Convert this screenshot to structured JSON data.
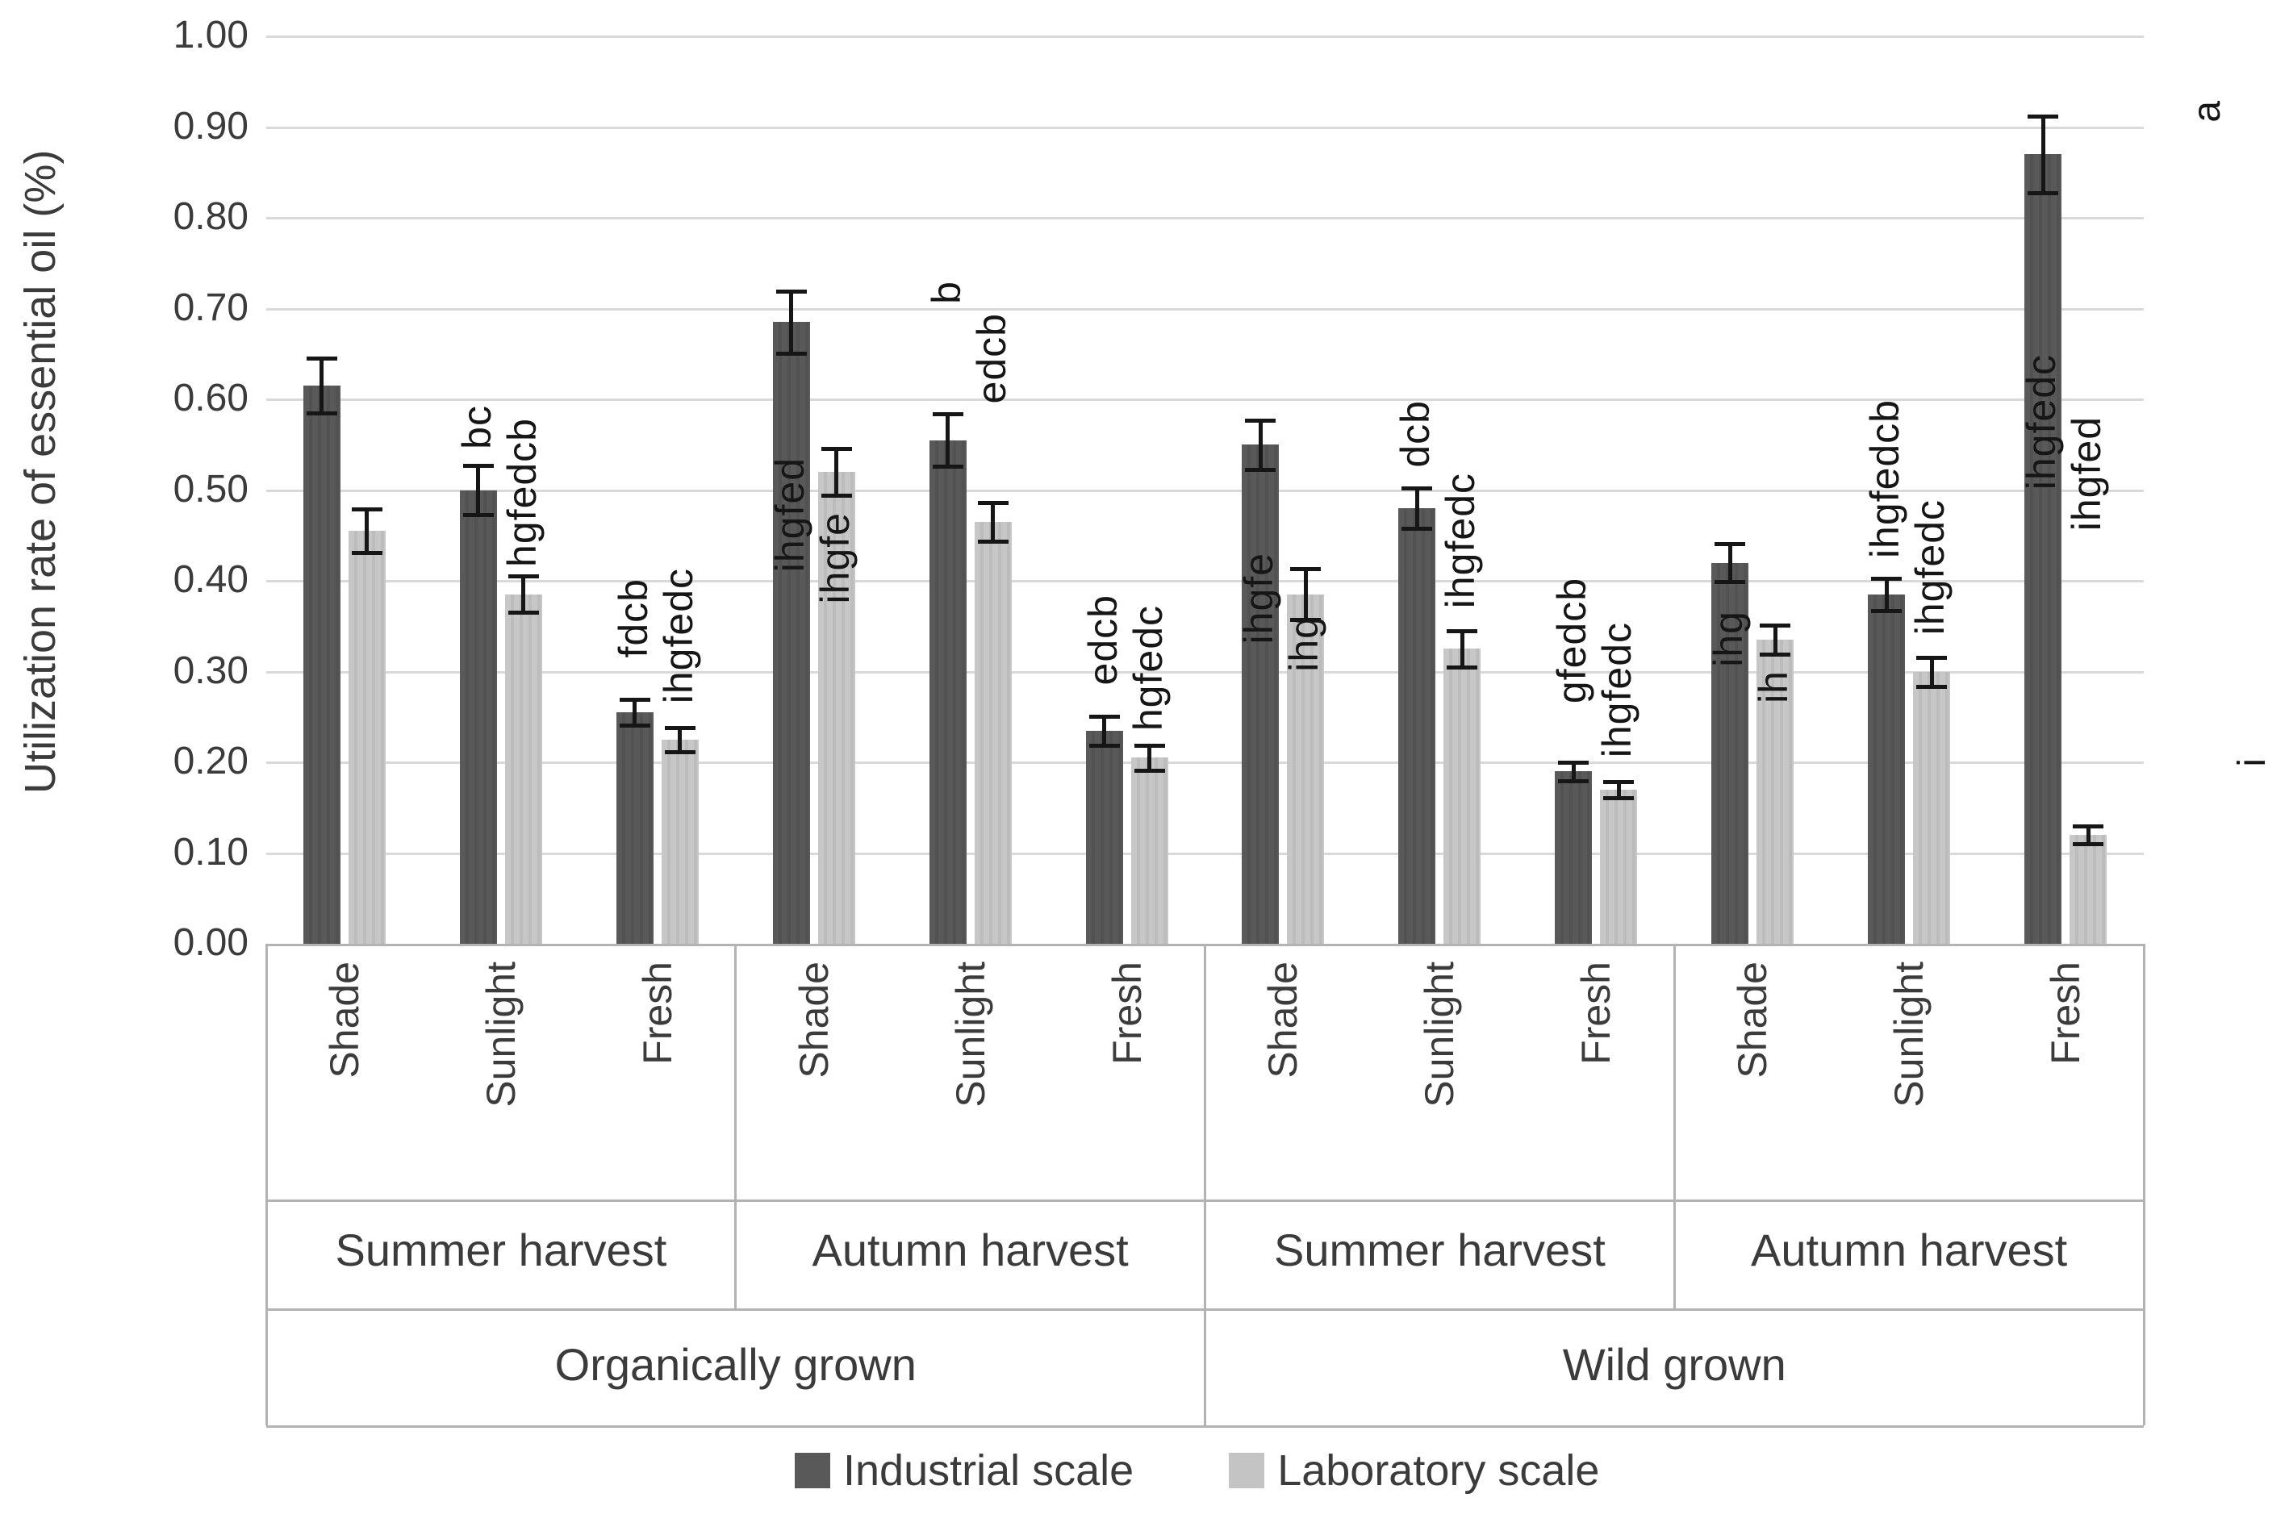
{
  "figure": {
    "y_axis_title": "Utilization rate of essential oil (%)"
  },
  "colors": {
    "industrial": "#595959",
    "laboratory": "#c4c4c4",
    "gridline": "#d9d9d9",
    "frame": "#b3b3b3",
    "error_bar": "#161616",
    "text": "#3b3b3b"
  },
  "chart_data": {
    "type": "bar",
    "ylabel": "Utilization rate of essential oil (%)",
    "ylim": [
      0,
      1.0
    ],
    "ytick_step": 0.1,
    "ytick_labels": [
      "0.00",
      "0.10",
      "0.20",
      "0.30",
      "0.40",
      "0.50",
      "0.60",
      "0.70",
      "0.80",
      "0.90",
      "1.00"
    ],
    "grid": true,
    "legend_position": "bottom",
    "series_names": [
      "Industrial scale",
      "Laboratory scale"
    ],
    "groups": [
      {
        "growth_label": "Organically grown",
        "harvest_label": "Summer harvest",
        "conditions": [
          {
            "condition": "Shade",
            "bars": [
              {
                "series": "Industrial scale",
                "value": 0.615,
                "error": 0.03,
                "letters": "",
                "letters_bottom": null
              },
              {
                "series": "Laboratory scale",
                "value": 0.455,
                "error": 0.024,
                "letters": "",
                "letters_bottom": null
              }
            ]
          },
          {
            "condition": "Sunlight",
            "bars": [
              {
                "series": "Industrial scale",
                "value": 0.5,
                "error": 0.027,
                "letters": "bc",
                "letters_bottom": 0.545
              },
              {
                "series": "Laboratory scale",
                "value": 0.385,
                "error": 0.02,
                "letters": "hgfedcb",
                "letters_bottom": 0.415
              }
            ]
          },
          {
            "condition": "Fresh",
            "bars": [
              {
                "series": "Industrial scale",
                "value": 0.255,
                "error": 0.014,
                "letters": "fdcb",
                "letters_bottom": 0.315
              },
              {
                "series": "Laboratory scale",
                "value": 0.225,
                "error": 0.013,
                "letters": "ihgfedc",
                "letters_bottom": 0.265
              }
            ]
          }
        ]
      },
      {
        "growth_label": "Organically grown",
        "harvest_label": "Autumn harvest",
        "conditions": [
          {
            "condition": "Shade",
            "bars": [
              {
                "series": "Industrial scale",
                "value": 0.685,
                "error": 0.034,
                "letters": "ihgfed",
                "letters_bottom": 0.41
              },
              {
                "series": "Laboratory scale",
                "value": 0.52,
                "error": 0.026,
                "letters": "ihgfe",
                "letters_bottom": 0.375
              }
            ]
          },
          {
            "condition": "Sunlight",
            "bars": [
              {
                "series": "Industrial scale",
                "value": 0.555,
                "error": 0.029,
                "letters": "b",
                "letters_bottom": 0.705
              },
              {
                "series": "Laboratory scale",
                "value": 0.465,
                "error": 0.021,
                "letters": "edcb",
                "letters_bottom": 0.595
              }
            ]
          },
          {
            "condition": "Fresh",
            "bars": [
              {
                "series": "Industrial scale",
                "value": 0.235,
                "error": 0.016,
                "letters": "edcb",
                "letters_bottom": 0.285
              },
              {
                "series": "Laboratory scale",
                "value": 0.205,
                "error": 0.014,
                "letters": "hgfedc",
                "letters_bottom": 0.235
              }
            ]
          }
        ]
      },
      {
        "growth_label": "Wild grown",
        "harvest_label": "Summer harvest",
        "conditions": [
          {
            "condition": "Shade",
            "bars": [
              {
                "series": "Industrial scale",
                "value": 0.55,
                "error": 0.027,
                "letters": "ihgfe",
                "letters_bottom": 0.33
              },
              {
                "series": "Laboratory scale",
                "value": 0.385,
                "error": 0.028,
                "letters": "ihg",
                "letters_bottom": 0.3
              }
            ]
          },
          {
            "condition": "Sunlight",
            "bars": [
              {
                "series": "Industrial scale",
                "value": 0.48,
                "error": 0.022,
                "letters": "dcb",
                "letters_bottom": 0.525
              },
              {
                "series": "Laboratory scale",
                "value": 0.325,
                "error": 0.02,
                "letters": "ihgfedc",
                "letters_bottom": 0.37
              }
            ]
          },
          {
            "condition": "Fresh",
            "bars": [
              {
                "series": "Industrial scale",
                "value": 0.19,
                "error": 0.01,
                "letters": "gfedcb",
                "letters_bottom": 0.265
              },
              {
                "series": "Laboratory scale",
                "value": 0.17,
                "error": 0.009,
                "letters": "ihgfedc",
                "letters_bottom": 0.205
              }
            ]
          }
        ]
      },
      {
        "growth_label": "Wild grown",
        "harvest_label": "Autumn harvest",
        "conditions": [
          {
            "condition": "Shade",
            "bars": [
              {
                "series": "Industrial scale",
                "value": 0.42,
                "error": 0.021,
                "letters": "ihg",
                "letters_bottom": 0.305
              },
              {
                "series": "Laboratory scale",
                "value": 0.335,
                "error": 0.016,
                "letters": "ih",
                "letters_bottom": 0.265
              }
            ]
          },
          {
            "condition": "Sunlight",
            "bars": [
              {
                "series": "Industrial scale",
                "value": 0.385,
                "error": 0.018,
                "letters": "ihgfedcb",
                "letters_bottom": 0.425
              },
              {
                "series": "Laboratory scale",
                "value": 0.3,
                "error": 0.016,
                "letters": "ihgfedc",
                "letters_bottom": 0.34
              }
            ]
          },
          {
            "condition": "Fresh",
            "bars": [
              {
                "series": "Industrial scale",
                "value": 0.87,
                "error": 0.042,
                "letters": "ihgfedc",
                "letters_bottom": 0.5
              },
              {
                "series": "Laboratory scale",
                "value": 0.12,
                "error": 0.01,
                "letters": "ihgfed",
                "letters_bottom": 0.455
              }
            ]
          }
        ]
      }
    ],
    "growth_groups": [
      {
        "label": "Organically grown",
        "span": [
          0,
          2
        ]
      },
      {
        "label": "Wild grown",
        "span": [
          2,
          4
        ]
      }
    ],
    "outside_annotations": [
      {
        "text": "a",
        "x": 2712,
        "anchor_value": 0.905
      },
      {
        "text": "i",
        "x": 2768,
        "anchor_value": 0.195
      }
    ]
  }
}
